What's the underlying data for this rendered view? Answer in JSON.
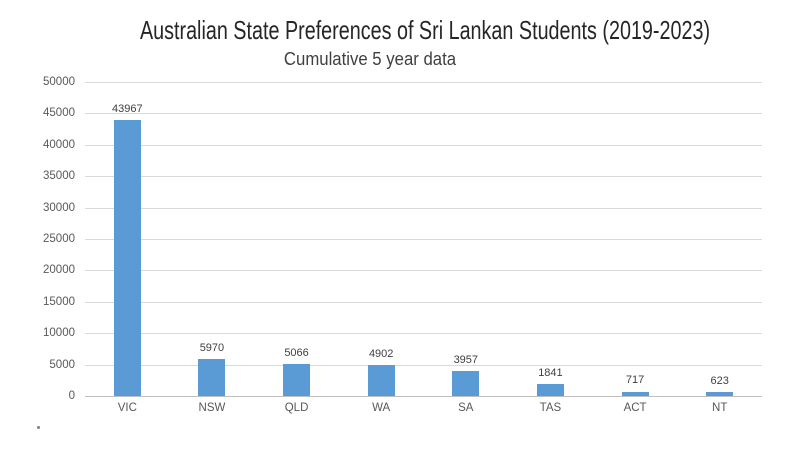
{
  "chart_data": {
    "type": "bar",
    "title": "Australian State Preferences of Sri Lankan Students (2019-2023)",
    "subtitle": "Cumulative 5 year data",
    "categories": [
      "VIC",
      "NSW",
      "QLD",
      "WA",
      "SA",
      "TAS",
      "ACT",
      "NT"
    ],
    "values": [
      43967,
      5970,
      5066,
      4902,
      3957,
      1841,
      717,
      623
    ],
    "data_labels": [
      "43967",
      "5970",
      "5066",
      "4902",
      "3957",
      "1841",
      "717",
      "623"
    ],
    "xlabel": "",
    "ylabel": "",
    "ylim": [
      0,
      50000
    ],
    "yticks": [
      0,
      5000,
      10000,
      15000,
      20000,
      25000,
      30000,
      35000,
      40000,
      45000,
      50000
    ],
    "grid": "horizontal",
    "legend": "none",
    "colors": {
      "bar": "#5B9BD5",
      "gridline": "#D9D9D9",
      "axis_line": "#BFBFBF",
      "tick_label": "#595959",
      "data_label": "#404040",
      "title": "#262626",
      "subtitle": "#404040",
      "background": "#FFFFFF"
    }
  }
}
